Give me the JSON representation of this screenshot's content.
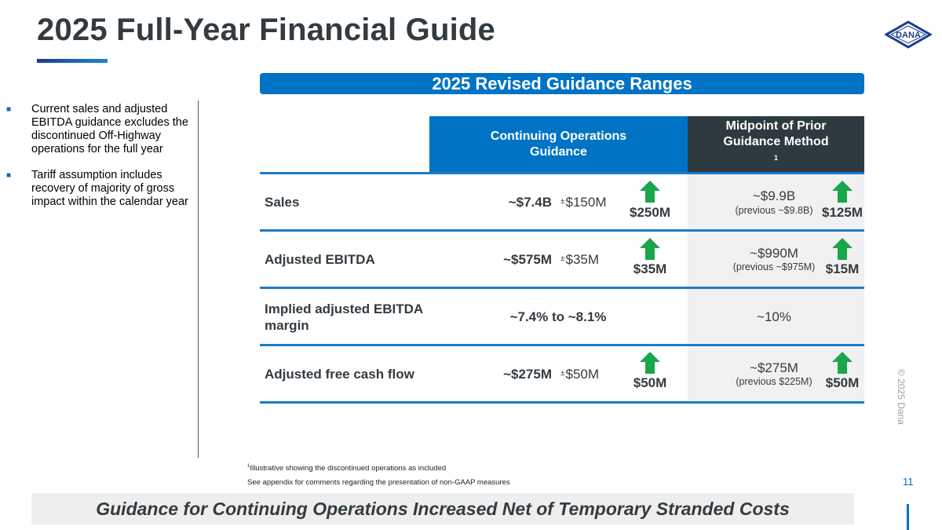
{
  "title": "2025 Full-Year Financial Guide",
  "logo_text": "DANA",
  "bullets": [
    "Current sales and adjusted EBITDA guidance excludes the discontinued Off-Highway operations for the full year",
    "Tariff assumption includes recovery of majority of gross impact within the calendar year"
  ],
  "banner": "2025 Revised Guidance Ranges",
  "headers": {
    "continuing_line1": "Continuing Operations",
    "continuing_line2": "Guidance",
    "prior_line1": "Midpoint of Prior",
    "prior_line2": "Guidance Method",
    "prior_footnote_mark": "1"
  },
  "rows": [
    {
      "label": "Sales",
      "value": "~$7.4B",
      "range": "$150M",
      "increase": "$250M",
      "prior_value": "~$9.9B",
      "prior_previous": "(previous ~$9.8B)",
      "prior_increase": "$125M"
    },
    {
      "label": "Adjusted EBITDA",
      "value": "~$575M",
      "range": "$35M",
      "increase": "$35M",
      "prior_value": "~$990M",
      "prior_previous": "(previous ~$975M)",
      "prior_increase": "$15M"
    },
    {
      "label_line1": "Implied adjusted EBITDA",
      "label_line2": "margin",
      "value": "~7.4% to ~8.1%",
      "prior_value": "~10%"
    },
    {
      "label": "Adjusted free cash flow",
      "value": "~$275M",
      "range": "$50M",
      "increase": "$50M",
      "prior_value": "~$275M",
      "prior_previous": "(previous $225M)",
      "prior_increase": "$50M"
    }
  ],
  "plus_minus": "±",
  "footnotes": {
    "note1_mark": "1",
    "note1": "Illustrative showing the discontinued operations as included",
    "note2": "See appendix for comments regarding the presentation of non-GAAP measures"
  },
  "bottom_message": "Guidance for Continuing Operations Increased Net of Temporary Stranded Costs",
  "copyright": "© 2025 Dana",
  "page_number": "11",
  "colors": {
    "accent_blue": "#0073c5",
    "dark_header": "#2f3a40",
    "arrow_green": "#1aa64a",
    "title_gray": "#333b41"
  },
  "icons": {
    "increase": "arrow-up-icon",
    "bullet": "square-bullet-icon",
    "logo": "dana-logo-icon"
  }
}
